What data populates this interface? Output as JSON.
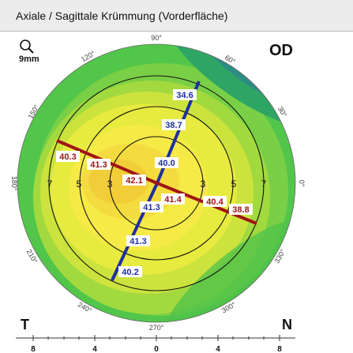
{
  "window": {
    "title": "Axiale / Sagittale Krümmung (Vorderfläche)"
  },
  "map": {
    "eye": "OD",
    "zoom_label": "9mm",
    "zoom_icon": "magnifier-icon",
    "left_label": "T",
    "right_label": "N",
    "ring_labels": [
      "3",
      "5",
      "7"
    ],
    "axis_degrees": [
      "30°",
      "60°",
      "90°",
      "120°",
      "150°",
      "180°",
      "210°",
      "240°",
      "270°",
      "300°",
      "330°",
      "0°"
    ],
    "ruler_ticks": [
      "8",
      "4",
      "0",
      "4",
      "8"
    ],
    "meridian_steep": {
      "color": "#1f2f9e",
      "values": [
        "34.6",
        "38.7",
        "40.0",
        "41.3",
        "41.3",
        "40.2"
      ]
    },
    "meridian_flat": {
      "color": "#a01515",
      "values": [
        "40.3",
        "41.3",
        "42.1",
        "41.4",
        "40.4",
        "38.8"
      ]
    }
  }
}
